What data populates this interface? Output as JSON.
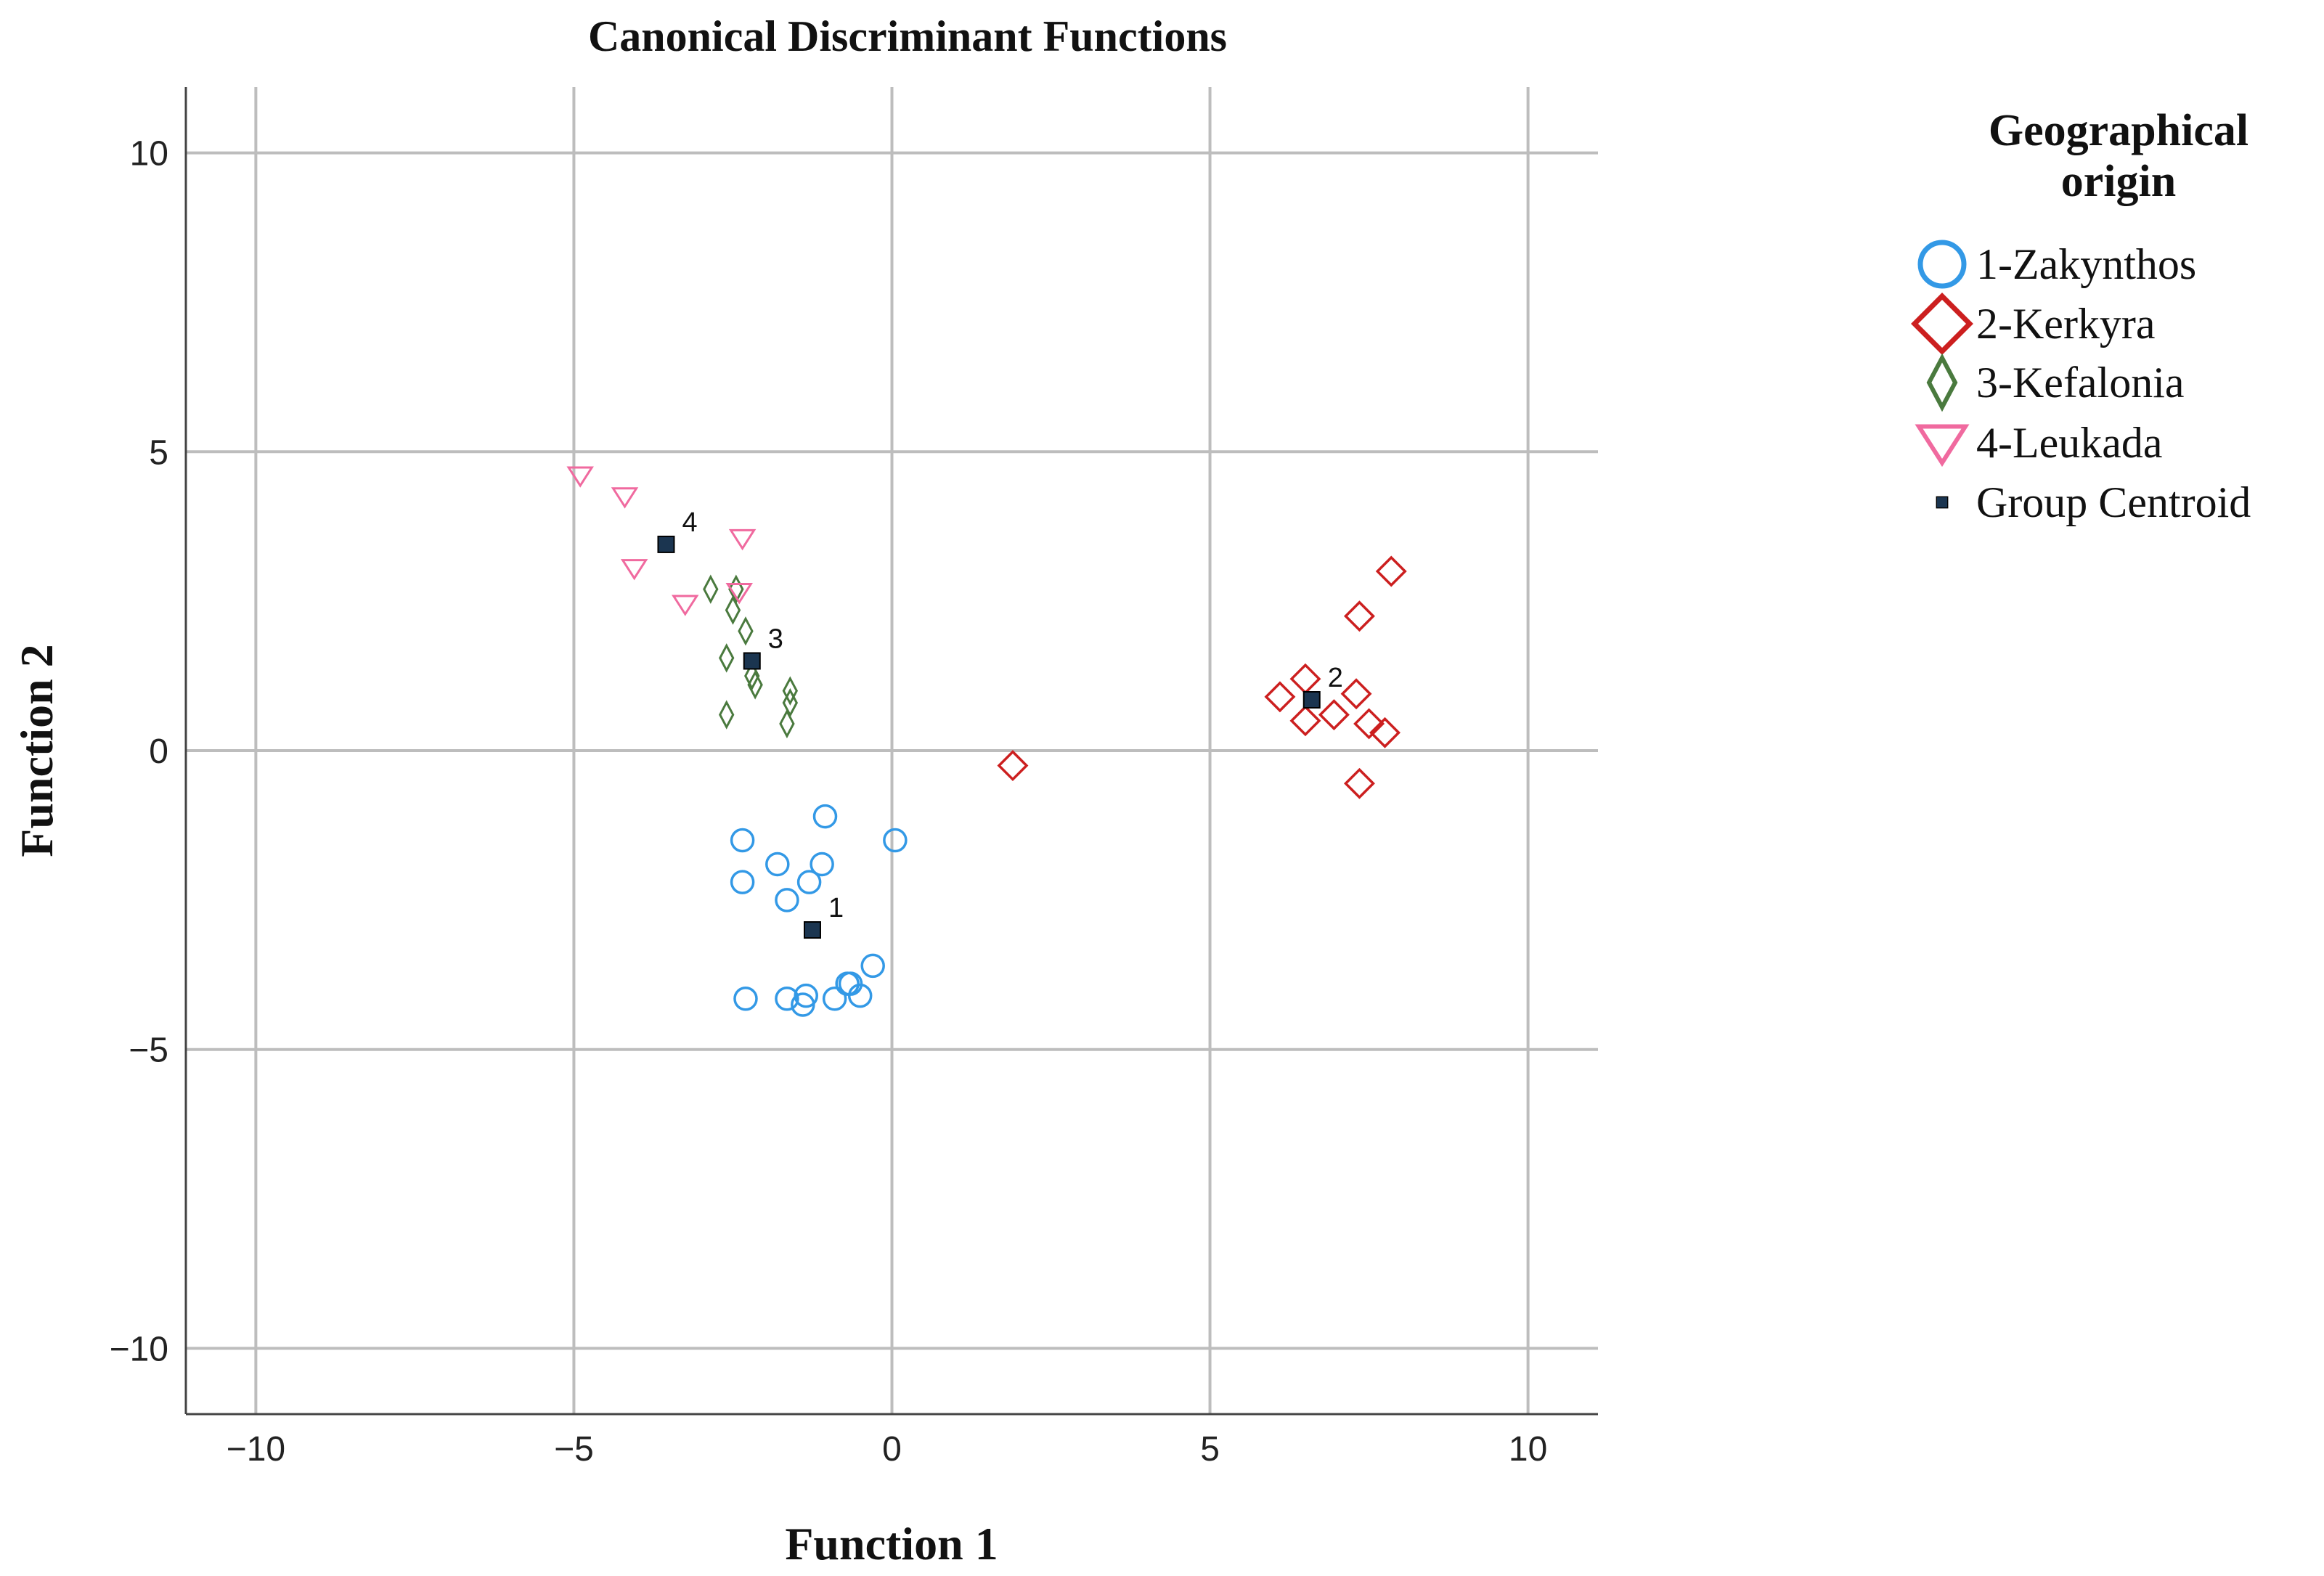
{
  "chart_data": {
    "type": "scatter",
    "title": "Canonical Discriminant Functions",
    "xlabel": "Function 1",
    "ylabel": "Function 2",
    "xlim": [
      -11.1,
      11.1
    ],
    "ylim": [
      -11.1,
      11.1
    ],
    "xticks": [
      -10,
      -5,
      0,
      5,
      10
    ],
    "yticks": [
      -10,
      -5,
      0,
      5,
      10
    ],
    "xtick_labels": [
      "−10",
      "−5",
      "0",
      "5",
      "10"
    ],
    "ytick_labels": [
      "−10",
      "−5",
      "0",
      "5",
      "10"
    ],
    "grid": true,
    "legend": {
      "title": "Geographical origin",
      "position": "top-right, outside plot",
      "entries": [
        "1-Zakynthos",
        "2-Kerkyra",
        "3-Kefalonia",
        "4-Leukada",
        "Group Centroid"
      ]
    },
    "series": [
      {
        "name": "1-Zakynthos",
        "marker": "circle",
        "color": "#3399e6",
        "points": [
          [
            -1.05,
            -1.1
          ],
          [
            0.05,
            -1.5
          ],
          [
            -2.35,
            -1.5
          ],
          [
            -1.8,
            -1.9
          ],
          [
            -1.1,
            -1.9
          ],
          [
            -2.35,
            -2.2
          ],
          [
            -1.3,
            -2.2
          ],
          [
            -1.65,
            -2.5
          ],
          [
            -0.3,
            -3.6
          ],
          [
            -0.7,
            -3.9
          ],
          [
            -0.65,
            -3.9
          ],
          [
            -2.3,
            -4.15
          ],
          [
            -1.65,
            -4.15
          ],
          [
            -1.35,
            -4.1
          ],
          [
            -0.9,
            -4.15
          ],
          [
            -0.5,
            -4.1
          ],
          [
            -1.4,
            -4.25
          ]
        ]
      },
      {
        "name": "2-Kerkyra",
        "marker": "diamond",
        "color": "#cc1f1f",
        "points": [
          [
            7.85,
            3.0
          ],
          [
            7.35,
            2.25
          ],
          [
            6.5,
            1.2
          ],
          [
            7.3,
            0.95
          ],
          [
            6.1,
            0.9
          ],
          [
            6.95,
            0.6
          ],
          [
            6.5,
            0.5
          ],
          [
            7.5,
            0.45
          ],
          [
            7.75,
            0.3
          ],
          [
            7.35,
            -0.55
          ],
          [
            1.9,
            -0.25
          ]
        ]
      },
      {
        "name": "3-Kefalonia",
        "marker": "thin-diamond",
        "color": "#4a7a3e",
        "points": [
          [
            -2.85,
            2.7
          ],
          [
            -2.45,
            2.7
          ],
          [
            -2.5,
            2.35
          ],
          [
            -2.3,
            2.0
          ],
          [
            -2.6,
            1.55
          ],
          [
            -2.2,
            1.25
          ],
          [
            -2.15,
            1.1
          ],
          [
            -1.6,
            1.0
          ],
          [
            -1.6,
            0.8
          ],
          [
            -2.6,
            0.6
          ],
          [
            -1.65,
            0.45
          ]
        ]
      },
      {
        "name": "4-Leukada",
        "marker": "triangle-down",
        "color": "#f06a9f",
        "points": [
          [
            -4.9,
            4.6
          ],
          [
            -4.2,
            4.25
          ],
          [
            -2.35,
            3.55
          ],
          [
            -4.05,
            3.05
          ],
          [
            -2.4,
            2.65
          ],
          [
            -3.25,
            2.45
          ]
        ]
      },
      {
        "name": "Group Centroid",
        "marker": "square",
        "color": "#1b3550",
        "points": [
          [
            -1.25,
            -3.0
          ],
          [
            6.6,
            0.85
          ],
          [
            -2.2,
            1.5
          ],
          [
            -3.55,
            3.45
          ]
        ],
        "labels": [
          "1",
          "2",
          "3",
          "4"
        ]
      }
    ]
  }
}
